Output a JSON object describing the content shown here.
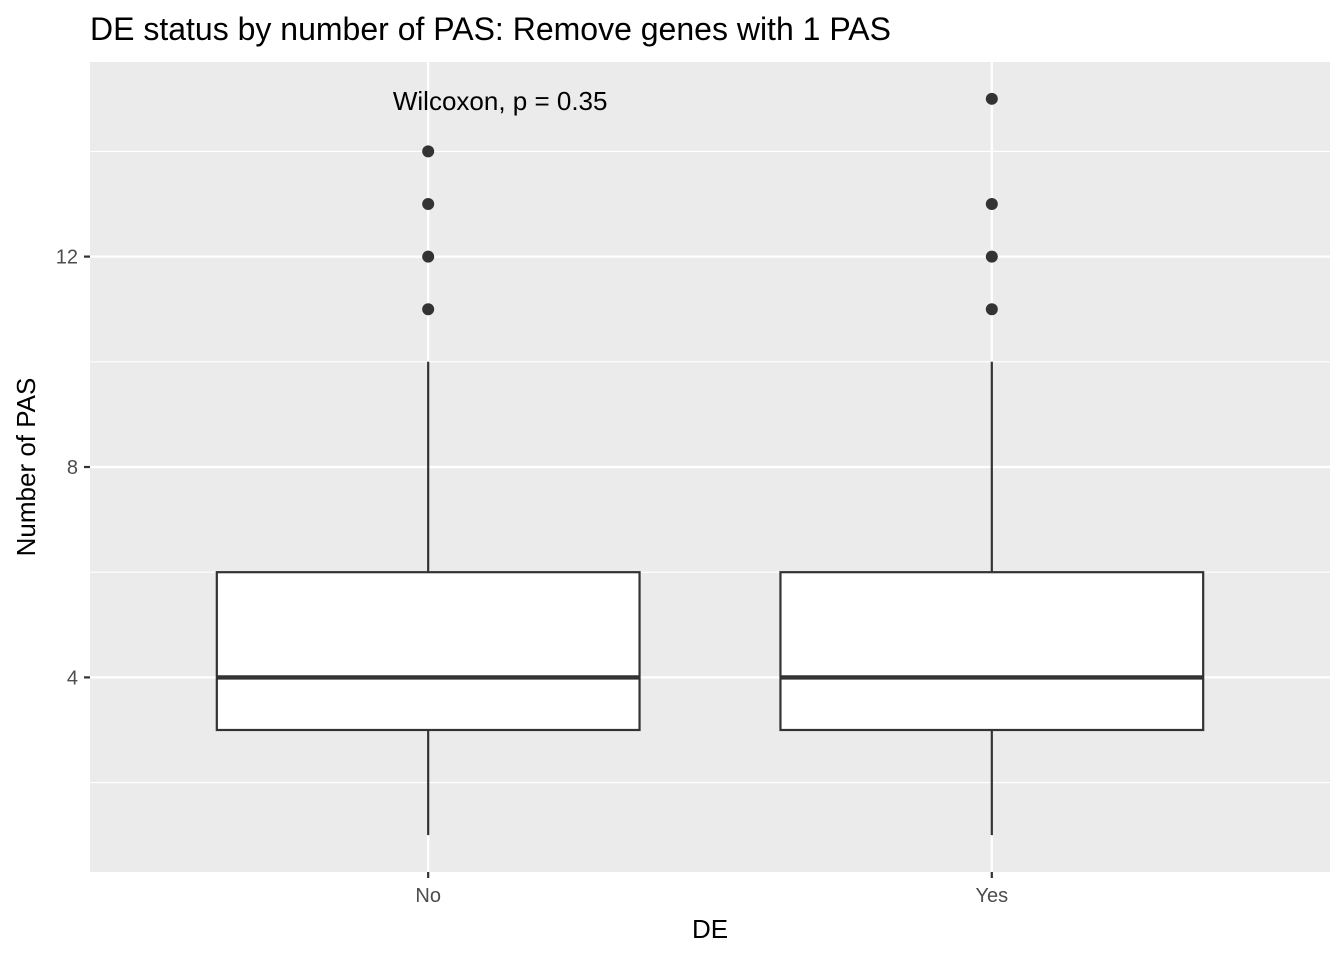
{
  "chart_data": {
    "type": "boxplot",
    "title": "DE status by number of PAS: Remove genes with 1 PAS",
    "xlabel": "DE",
    "ylabel": "Number of PAS",
    "categories": [
      "No",
      "Yes"
    ],
    "y_ticks": [
      4,
      8,
      12
    ],
    "y_tick_labels": [
      "4",
      "8",
      "12"
    ],
    "ylim": [
      0.3,
      15.7
    ],
    "grid": true,
    "boxes": [
      {
        "category": "No",
        "min": 1,
        "q1": 3,
        "median": 4,
        "q3": 6,
        "max": 10,
        "outliers": [
          11,
          12,
          13,
          14
        ]
      },
      {
        "category": "Yes",
        "min": 1,
        "q1": 3,
        "median": 4,
        "q3": 6,
        "max": 10,
        "outliers": [
          11,
          12,
          13,
          15
        ]
      }
    ],
    "annotation": {
      "text": "Wilcoxon, p = 0.35",
      "x_category": "No",
      "y": 15
    },
    "colors": {
      "panel_background": "#ebebeb",
      "grid": "#ffffff",
      "box_fill": "#ffffff",
      "box_line": "#333333",
      "outlier": "#333333",
      "tick": "#333333"
    }
  }
}
